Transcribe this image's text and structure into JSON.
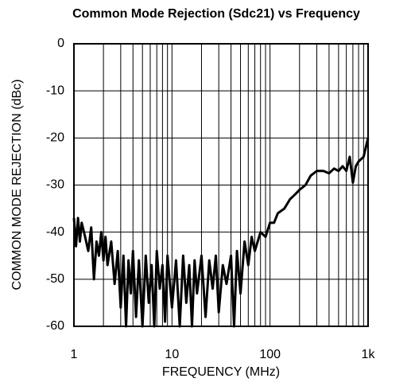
{
  "chart_data": {
    "type": "line",
    "title": "Common Mode Rejection (Sdc21) vs Frequency",
    "xlabel": "FREQUENCY (MHz)",
    "ylabel": "COMMON MODE REJECTION (dBc)",
    "xscale": "log",
    "xlim": [
      1,
      1000
    ],
    "ylim": [
      -60,
      0
    ],
    "xticks": [
      1,
      10,
      100,
      {
        "value": 1000,
        "label": "1k"
      }
    ],
    "xgrid_minor": [
      2,
      3,
      4,
      5,
      6,
      7,
      8,
      9,
      20,
      30,
      40,
      50,
      60,
      70,
      80,
      90,
      200,
      300,
      400,
      500,
      600,
      700,
      800,
      900
    ],
    "yticks": [
      0,
      -10,
      -20,
      -30,
      -40,
      -50,
      -60
    ],
    "grid": true,
    "color": "#000000",
    "x": [
      1,
      1.05,
      1.1,
      1.15,
      1.2,
      1.3,
      1.4,
      1.5,
      1.6,
      1.7,
      1.8,
      1.9,
      2,
      2.1,
      2.2,
      2.4,
      2.6,
      2.8,
      3,
      3.2,
      3.4,
      3.6,
      3.8,
      4,
      4.3,
      4.6,
      5,
      5.4,
      5.8,
      6.2,
      6.6,
      7,
      7.5,
      8,
      8.5,
      9,
      10,
      11,
      12,
      13,
      14,
      15,
      16,
      17,
      18,
      20,
      22,
      24,
      26,
      28,
      30,
      33,
      36,
      40,
      43,
      46,
      50,
      55,
      60,
      65,
      70,
      80,
      90,
      100,
      110,
      120,
      140,
      160,
      180,
      200,
      230,
      260,
      300,
      350,
      400,
      450,
      500,
      550,
      600,
      650,
      700,
      750,
      800,
      900,
      1000
    ],
    "values": [
      -37,
      -43,
      -37,
      -42,
      -38,
      -41,
      -44,
      -39,
      -50,
      -42,
      -45,
      -40,
      -46,
      -41,
      -47,
      -42,
      -51,
      -44,
      -56,
      -45,
      -60,
      -46,
      -53,
      -44,
      -58,
      -46,
      -60,
      -45,
      -55,
      -47,
      -60,
      -44,
      -52,
      -47,
      -59,
      -45,
      -56,
      -46,
      -60,
      -45,
      -55,
      -47,
      -60,
      -46,
      -53,
      -45,
      -58,
      -46,
      -52,
      -45,
      -57,
      -47,
      -51,
      -45,
      -60,
      -44,
      -53,
      -42,
      -47,
      -41,
      -44,
      -40,
      -41,
      -38,
      -38,
      -36,
      -35,
      -33,
      -32,
      -31,
      -30,
      -28,
      -27,
      -27,
      -27.5,
      -26.5,
      -27,
      -26,
      -27,
      -24,
      -29.5,
      -26,
      -25,
      -24,
      -20
    ]
  }
}
